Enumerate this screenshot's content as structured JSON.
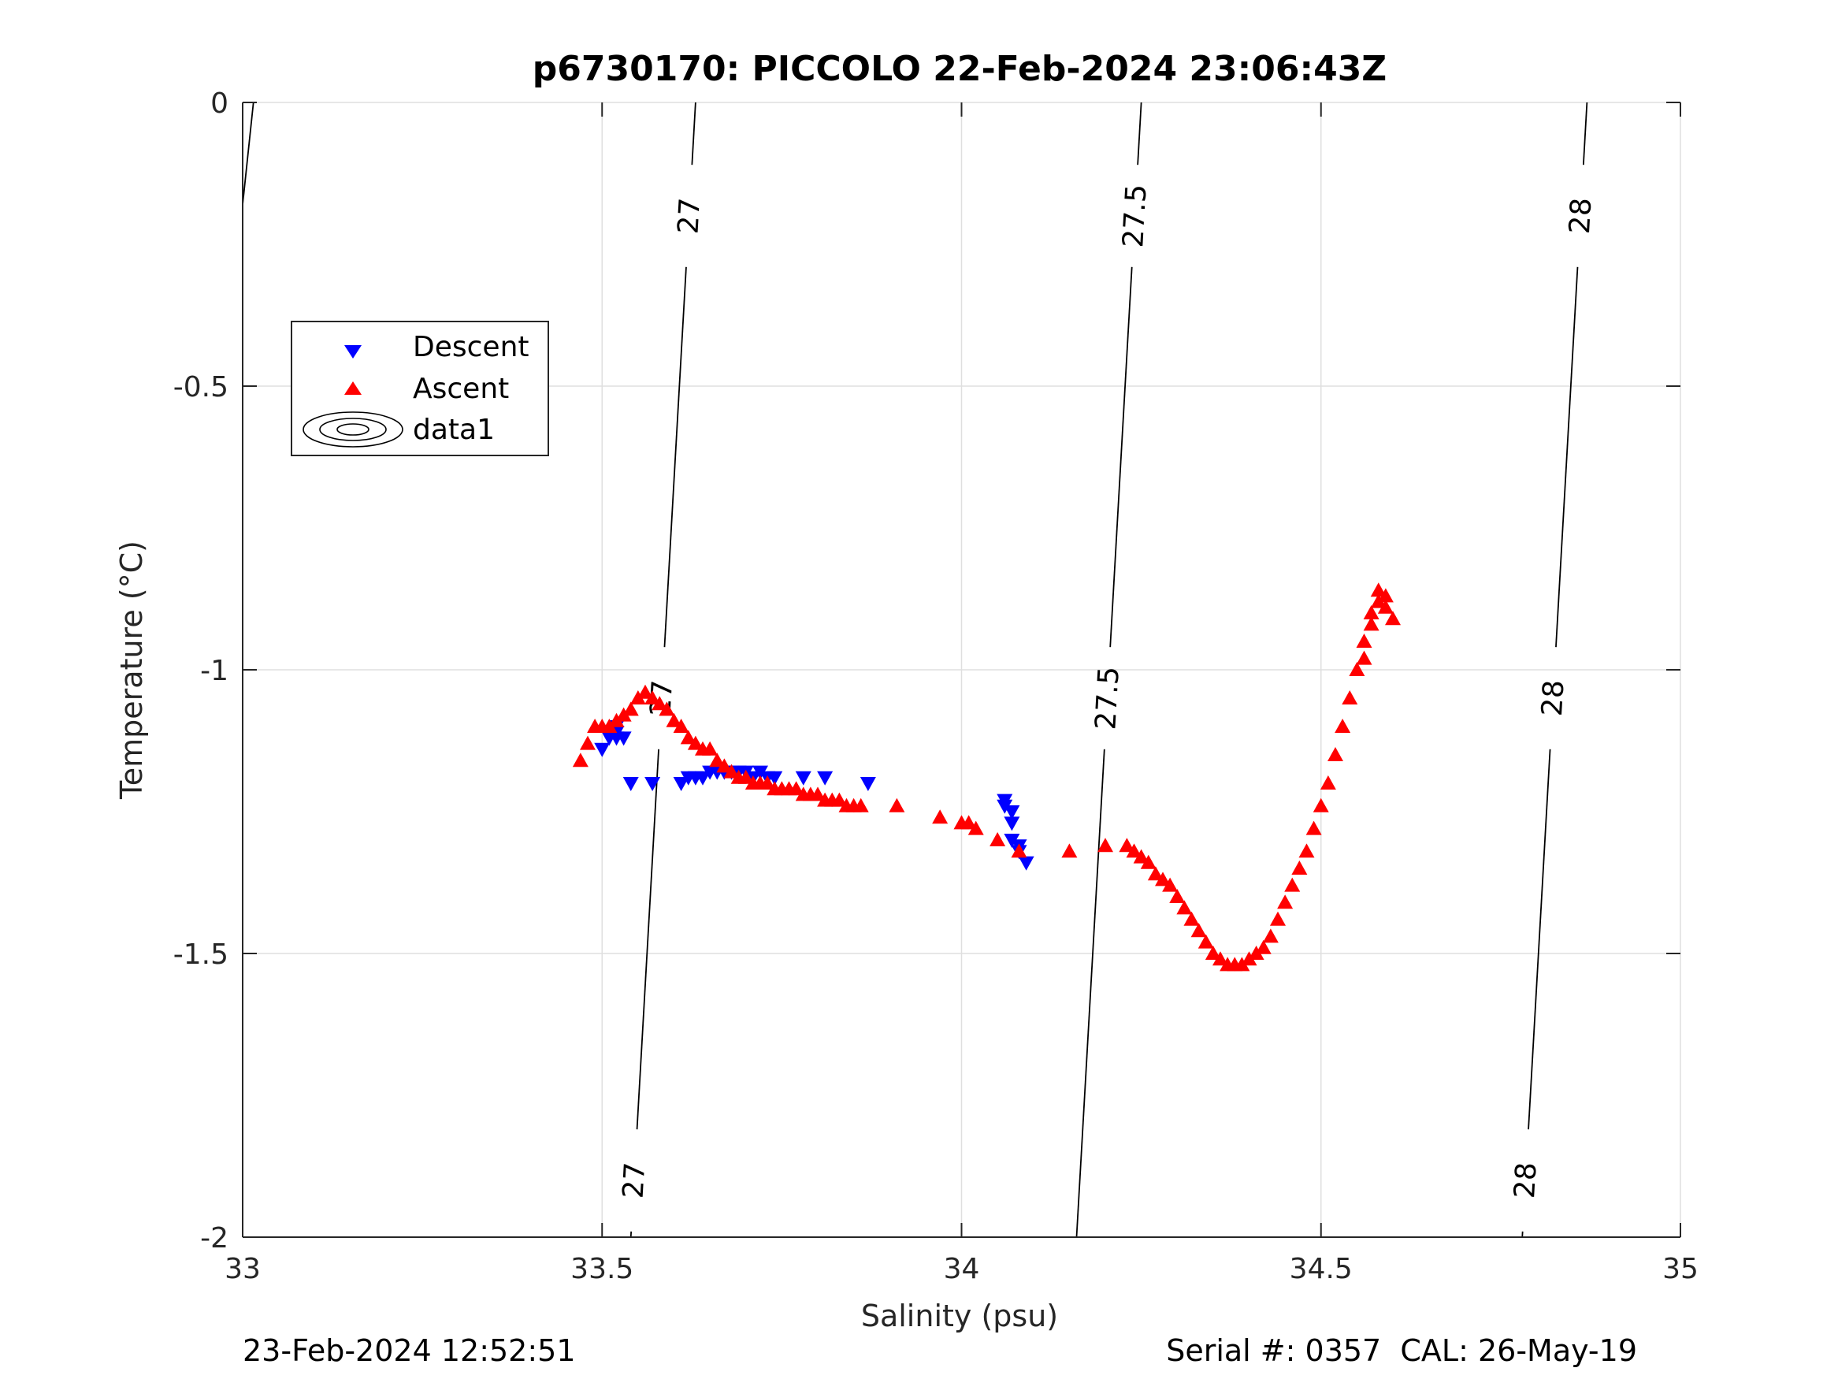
{
  "chart_data": {
    "type": "scatter",
    "title": "p6730170: PICCOLO 22-Feb-2024 23:06:43Z",
    "xlabel": "Salinity (psu)",
    "ylabel": "Temperature (°C)",
    "xlim": [
      33,
      35
    ],
    "ylim": [
      -2,
      0
    ],
    "x_ticks": [
      33,
      33.5,
      34,
      34.5,
      35
    ],
    "x_tick_labels": [
      "33",
      "33.5",
      "34",
      "34.5",
      "35"
    ],
    "y_ticks": [
      -2,
      -1.5,
      -1,
      -0.5,
      0
    ],
    "y_tick_labels": [
      "-2",
      "-1.5",
      "-1",
      "-0.5",
      "0"
    ],
    "grid": true,
    "legend_position": "upper-left",
    "legend": [
      {
        "label": "Descent",
        "marker": "triangle-down",
        "color": "#0000ff"
      },
      {
        "label": "Ascent",
        "marker": "triangle-up",
        "color": "#ff0000"
      },
      {
        "label": "data1",
        "marker": "contour",
        "color": "#000000"
      }
    ],
    "series": [
      {
        "name": "Descent",
        "marker": "triangle-down",
        "color": "#0000ff",
        "x": [
          33.5,
          33.51,
          33.52,
          33.52,
          33.52,
          33.53,
          33.54,
          33.57,
          33.61,
          33.62,
          33.63,
          33.64,
          33.65,
          33.66,
          33.67,
          33.68,
          33.69,
          33.7,
          33.71,
          33.72,
          33.73,
          33.74,
          33.78,
          33.81,
          33.87,
          34.06,
          34.06,
          34.07,
          34.07,
          34.07,
          34.08,
          34.08,
          34.09
        ],
        "y": [
          -1.14,
          -1.12,
          -1.1,
          -1.11,
          -1.12,
          -1.12,
          -1.2,
          -1.2,
          -1.2,
          -1.19,
          -1.19,
          -1.19,
          -1.18,
          -1.18,
          -1.18,
          -1.18,
          -1.18,
          -1.18,
          -1.19,
          -1.18,
          -1.19,
          -1.19,
          -1.19,
          -1.19,
          -1.2,
          -1.23,
          -1.24,
          -1.25,
          -1.27,
          -1.3,
          -1.31,
          -1.32,
          -1.34
        ]
      },
      {
        "name": "Ascent",
        "marker": "triangle-up",
        "color": "#ff0000",
        "x": [
          33.47,
          33.48,
          33.49,
          33.5,
          33.51,
          33.52,
          33.53,
          33.54,
          33.55,
          33.56,
          33.57,
          33.58,
          33.59,
          33.6,
          33.61,
          33.62,
          33.63,
          33.64,
          33.65,
          33.66,
          33.67,
          33.68,
          33.69,
          33.7,
          33.71,
          33.72,
          33.73,
          33.74,
          33.75,
          33.76,
          33.77,
          33.78,
          33.79,
          33.8,
          33.81,
          33.82,
          33.83,
          33.84,
          33.85,
          33.86,
          33.91,
          33.97,
          34.0,
          34.01,
          34.02,
          34.05,
          34.08,
          34.15,
          34.2,
          34.23,
          34.24,
          34.25,
          34.26,
          34.27,
          34.28,
          34.29,
          34.3,
          34.31,
          34.32,
          34.33,
          34.34,
          34.35,
          34.36,
          34.37,
          34.38,
          34.39,
          34.4,
          34.41,
          34.42,
          34.43,
          34.44,
          34.45,
          34.46,
          34.47,
          34.48,
          34.49,
          34.5,
          34.51,
          34.52,
          34.53,
          34.54,
          34.55,
          34.56,
          34.56,
          34.57,
          34.57,
          34.58,
          34.58,
          34.59,
          34.59,
          34.6
        ],
        "y": [
          -1.16,
          -1.13,
          -1.1,
          -1.1,
          -1.1,
          -1.09,
          -1.08,
          -1.07,
          -1.05,
          -1.04,
          -1.05,
          -1.06,
          -1.07,
          -1.09,
          -1.1,
          -1.12,
          -1.13,
          -1.14,
          -1.14,
          -1.16,
          -1.17,
          -1.18,
          -1.19,
          -1.19,
          -1.2,
          -1.2,
          -1.2,
          -1.21,
          -1.21,
          -1.21,
          -1.21,
          -1.22,
          -1.22,
          -1.22,
          -1.23,
          -1.23,
          -1.23,
          -1.24,
          -1.24,
          -1.24,
          -1.24,
          -1.26,
          -1.27,
          -1.27,
          -1.28,
          -1.3,
          -1.32,
          -1.32,
          -1.31,
          -1.31,
          -1.32,
          -1.33,
          -1.34,
          -1.36,
          -1.37,
          -1.38,
          -1.4,
          -1.42,
          -1.44,
          -1.46,
          -1.48,
          -1.5,
          -1.51,
          -1.52,
          -1.52,
          -1.52,
          -1.51,
          -1.5,
          -1.49,
          -1.47,
          -1.44,
          -1.41,
          -1.38,
          -1.35,
          -1.32,
          -1.28,
          -1.24,
          -1.2,
          -1.15,
          -1.1,
          -1.05,
          -1.0,
          -0.98,
          -0.95,
          -0.92,
          -0.9,
          -0.88,
          -0.86,
          -0.87,
          -0.89,
          -0.91
        ]
      }
    ],
    "density_contours": [
      {
        "label": "27",
        "x_top": 33.63,
        "x_bottom": 33.54,
        "label_y": [
          -0.2,
          -1.05,
          -1.9
        ]
      },
      {
        "label": "27.5",
        "x_top": 34.25,
        "x_bottom": 34.16,
        "label_y": [
          -0.2,
          -1.05
        ]
      },
      {
        "label": "28",
        "x_top": 34.87,
        "x_bottom": 34.78,
        "label_y": [
          -0.2,
          -1.05,
          -1.9
        ]
      }
    ],
    "footer_left": "23-Feb-2024 12:52:51",
    "footer_right": "Serial #: 0357  CAL: 26-May-19"
  }
}
